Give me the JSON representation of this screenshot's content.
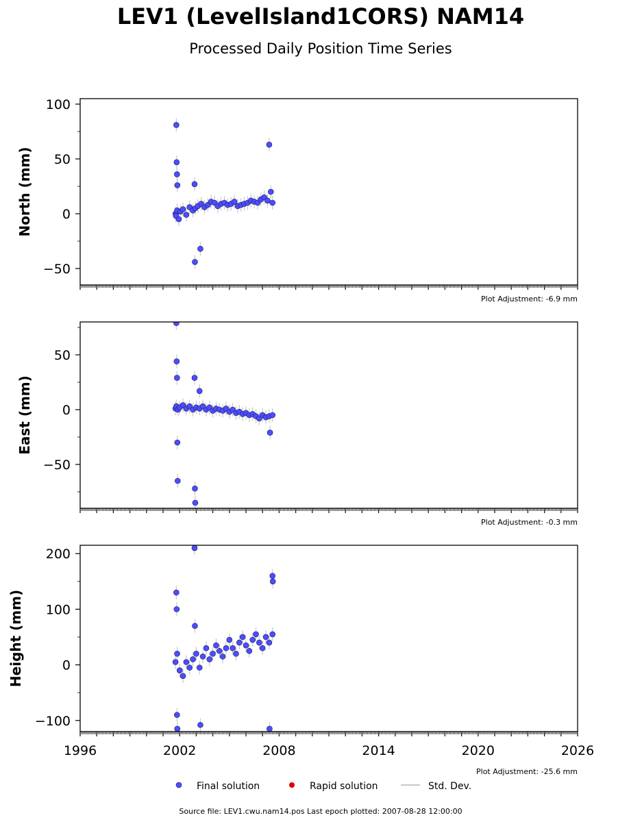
{
  "title": "LEV1 (LevelIsland1CORS) NAM14",
  "subtitle": "Processed Daily Position Time Series",
  "legend": {
    "final": "Final solution",
    "rapid": "Rapid solution",
    "std": "Std. Dev."
  },
  "source": "Source file: LEV1.cwu.nam14.pos  Last epoch plotted: 2007-08-28 12:00:00",
  "colors": {
    "final": "#4d4dff",
    "final_edge": "#1a1a5e",
    "rapid": "#e00000",
    "std": "#c8c8c8"
  },
  "chart_data": [
    {
      "type": "scatter",
      "ylabel": "North (mm)",
      "xlim": [
        1996,
        2026
      ],
      "ylim": [
        -65,
        105
      ],
      "yticks": [
        -50,
        0,
        50,
        100
      ],
      "xticks": [
        1996,
        2002,
        2008,
        2014,
        2020,
        2026
      ],
      "show_xtick_labels": false,
      "adjustment": "Plot Adjustment: -6.9 mm",
      "series": [
        {
          "x": [
            2001.75,
            2001.78,
            2001.85,
            2001.95,
            2002.05,
            2002.2,
            2002.4,
            2002.6,
            2002.8,
            2002.95,
            2003.1,
            2003.3,
            2003.5,
            2003.7,
            2003.9,
            2004.1,
            2004.3,
            2004.5,
            2004.7,
            2004.9,
            2005.1,
            2005.3,
            2005.5,
            2005.7,
            2005.9,
            2006.1,
            2006.3,
            2006.5,
            2006.7,
            2006.9,
            2007.1,
            2007.3,
            2007.5,
            2007.6,
            2001.8,
            2001.82,
            2001.84,
            2001.86,
            2002.9,
            2002.92,
            2003.25,
            2007.4
          ],
          "y": [
            0,
            -2,
            3,
            -5,
            2,
            4,
            -1,
            6,
            3,
            5,
            7,
            9,
            6,
            8,
            11,
            10,
            7,
            9,
            10,
            8,
            9,
            11,
            7,
            8,
            9,
            10,
            12,
            11,
            10,
            13,
            15,
            12,
            20,
            10,
            81,
            47,
            36,
            26,
            27,
            -44,
            -32,
            63
          ]
        }
      ]
    },
    {
      "type": "scatter",
      "ylabel": "East (mm)",
      "xlim": [
        1996,
        2026
      ],
      "ylim": [
        -90,
        80
      ],
      "yticks": [
        -50,
        0,
        50
      ],
      "xticks": [
        1996,
        2002,
        2008,
        2014,
        2020,
        2026
      ],
      "show_xtick_labels": false,
      "adjustment": "Plot Adjustment: -0.3 mm",
      "series": [
        {
          "x": [
            2001.75,
            2001.8,
            2001.9,
            2002.0,
            2002.2,
            2002.4,
            2002.6,
            2002.8,
            2003.0,
            2003.2,
            2003.4,
            2003.6,
            2003.8,
            2004.0,
            2004.2,
            2004.4,
            2004.6,
            2004.8,
            2005.0,
            2005.2,
            2005.4,
            2005.6,
            2005.8,
            2006.0,
            2006.2,
            2006.4,
            2006.6,
            2006.8,
            2007.0,
            2007.2,
            2007.4,
            2007.6,
            2001.8,
            2001.82,
            2001.84,
            2001.86,
            2001.88,
            2002.9,
            2002.92,
            2002.94,
            2003.2,
            2007.45
          ],
          "y": [
            1,
            3,
            0,
            2,
            4,
            1,
            3,
            0,
            2,
            1,
            3,
            0,
            2,
            -1,
            1,
            0,
            -1,
            1,
            -2,
            0,
            -3,
            -2,
            -4,
            -3,
            -5,
            -4,
            -6,
            -8,
            -5,
            -7,
            -6,
            -5,
            79,
            44,
            29,
            -30,
            -65,
            29,
            -72,
            -85,
            17,
            -21
          ]
        }
      ]
    },
    {
      "type": "scatter",
      "ylabel": "Height (mm)",
      "xlim": [
        1996,
        2026
      ],
      "ylim": [
        -120,
        215
      ],
      "yticks": [
        -100,
        0,
        100,
        200
      ],
      "xticks": [
        1996,
        2002,
        2008,
        2014,
        2020,
        2026
      ],
      "show_xtick_labels": true,
      "adjustment": "Plot Adjustment: -25.6 mm",
      "series": [
        {
          "x": [
            2001.75,
            2001.85,
            2002.0,
            2002.2,
            2002.4,
            2002.6,
            2002.8,
            2003.0,
            2003.2,
            2003.4,
            2003.6,
            2003.8,
            2004.0,
            2004.2,
            2004.4,
            2004.6,
            2004.8,
            2005.0,
            2005.2,
            2005.4,
            2005.6,
            2005.8,
            2006.0,
            2006.2,
            2006.4,
            2006.6,
            2006.8,
            2007.0,
            2007.2,
            2007.4,
            2007.6,
            2001.8,
            2001.82,
            2001.84,
            2001.86,
            2002.9,
            2002.92,
            2003.25,
            2007.6,
            2007.62,
            2007.42
          ],
          "y": [
            5,
            20,
            -10,
            -20,
            5,
            -5,
            10,
            20,
            -5,
            15,
            30,
            10,
            20,
            35,
            25,
            15,
            30,
            45,
            30,
            20,
            40,
            50,
            35,
            25,
            45,
            55,
            40,
            30,
            50,
            40,
            55,
            130,
            100,
            -90,
            -115,
            210,
            70,
            -108,
            160,
            150,
            -115
          ]
        }
      ]
    }
  ]
}
